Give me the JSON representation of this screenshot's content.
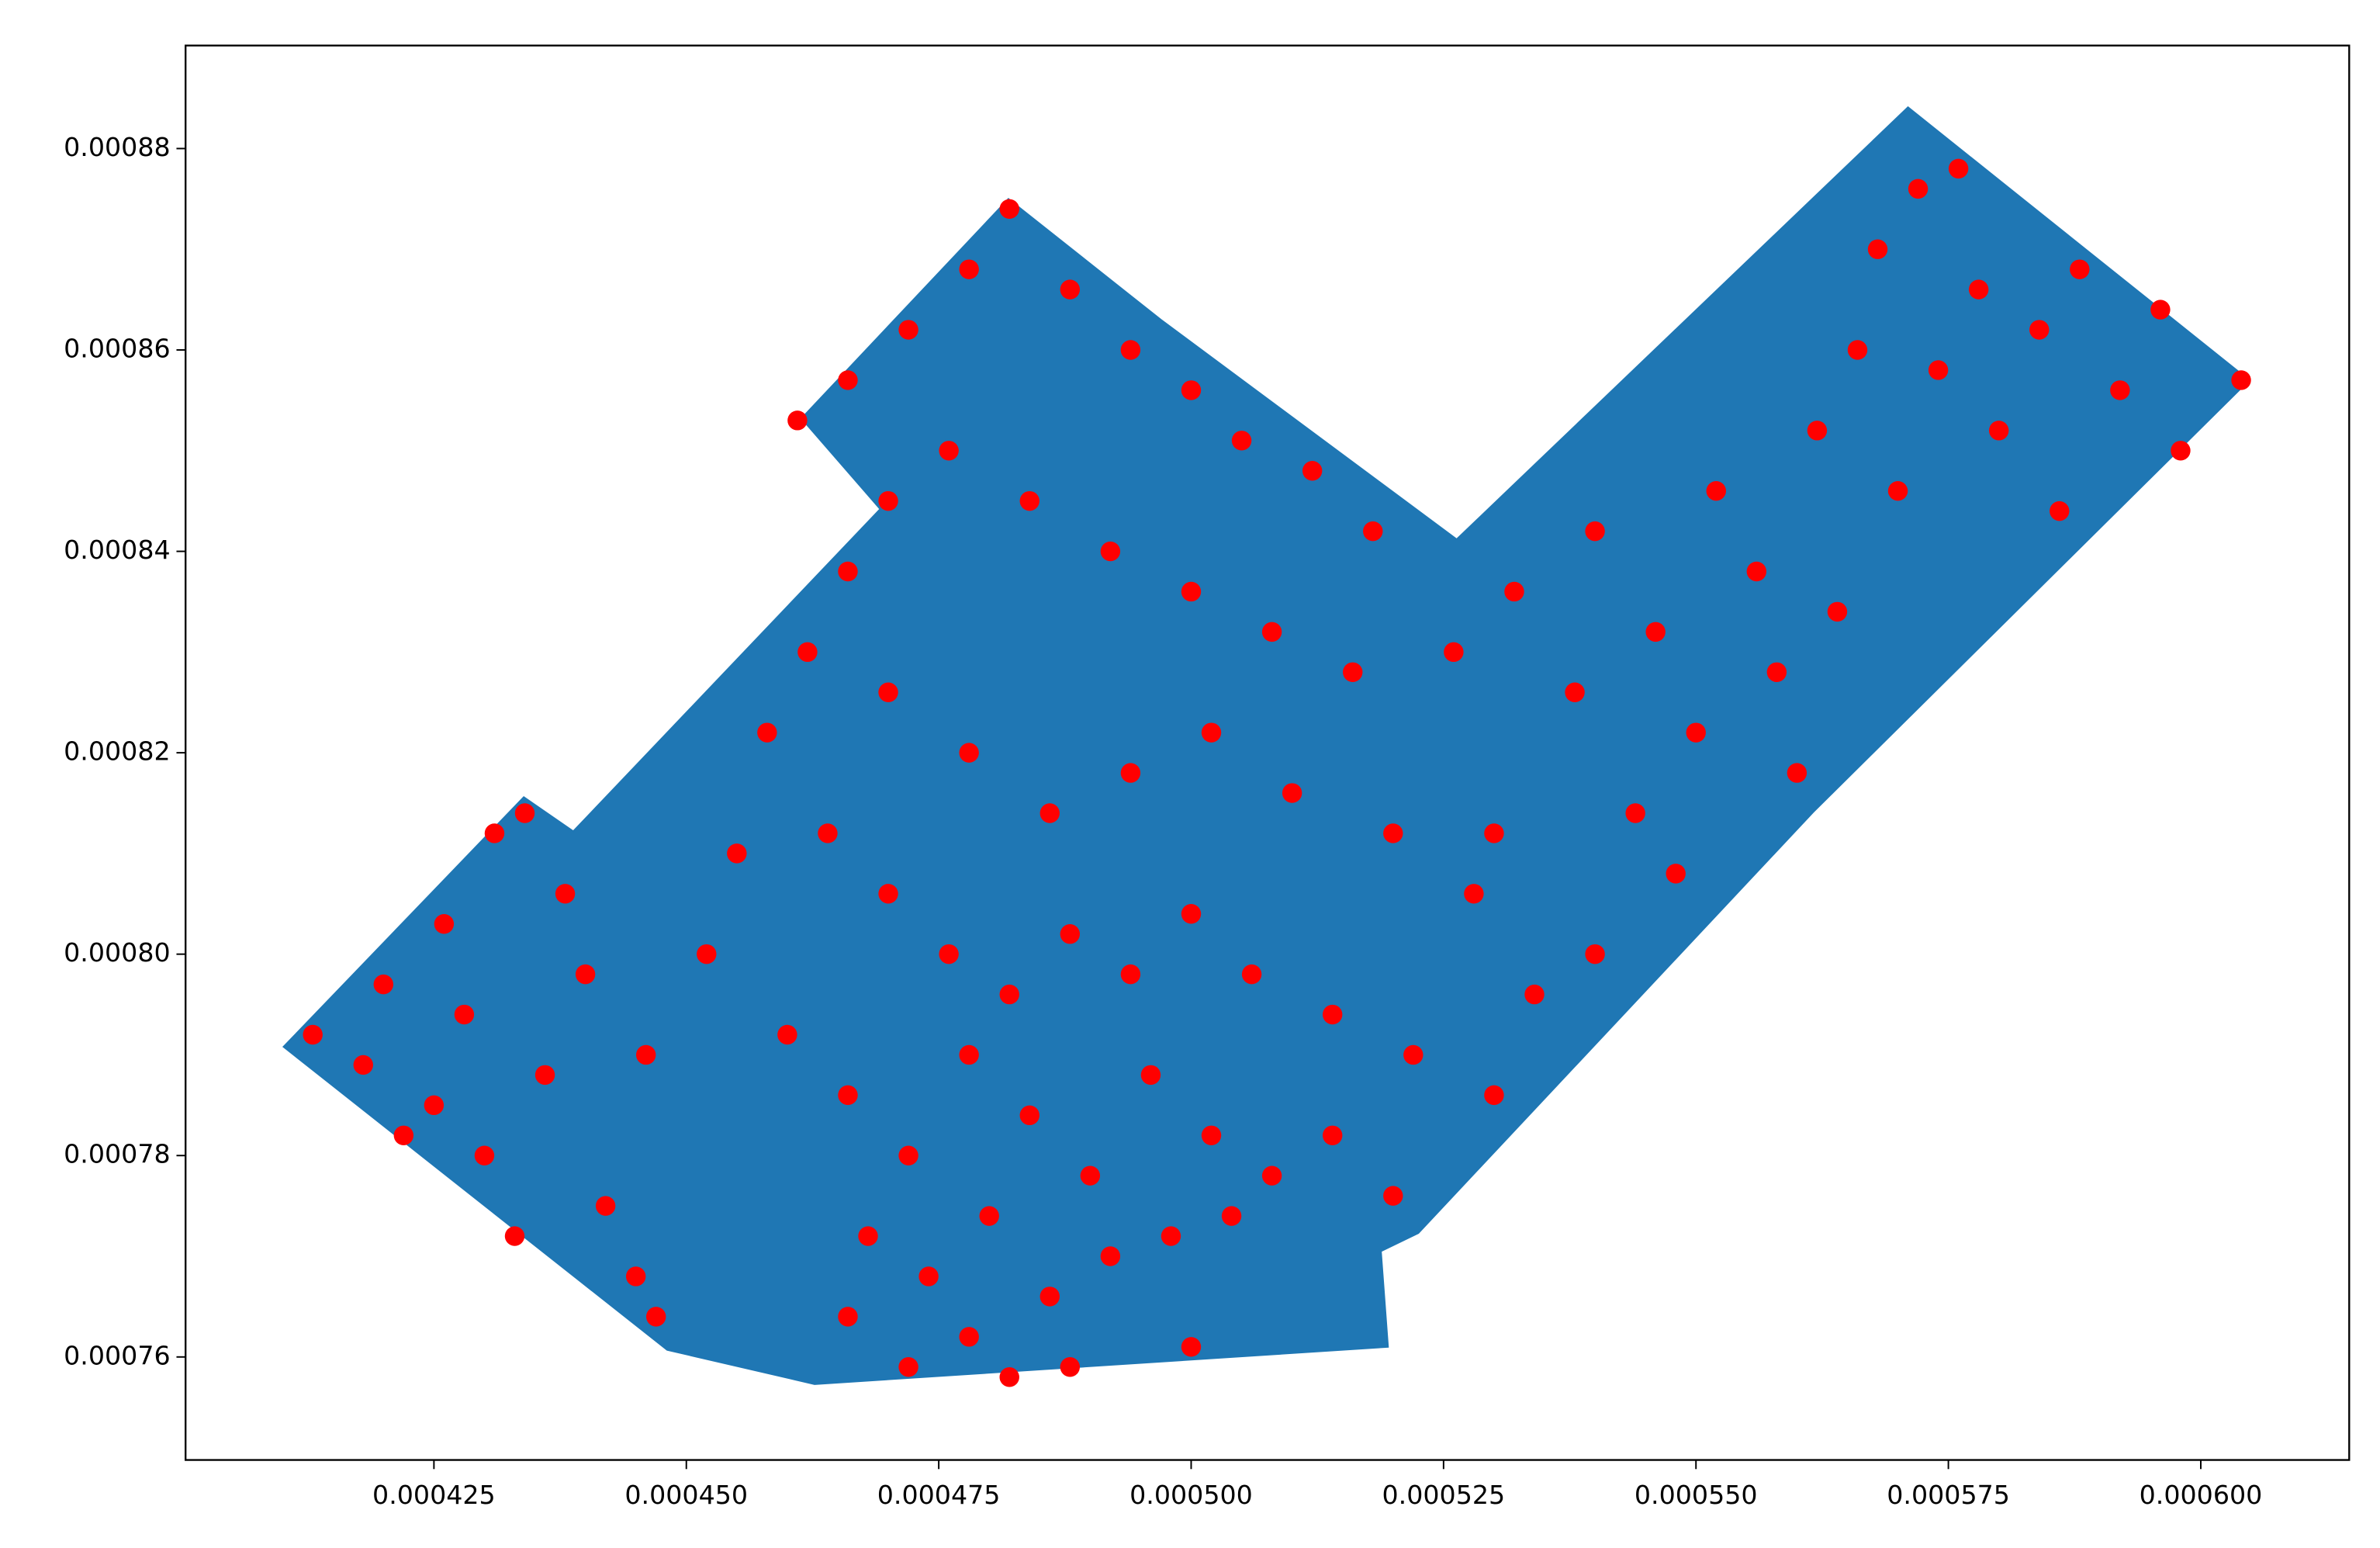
{
  "chart_data": {
    "type": "scatter",
    "xlim": [
      0.0004004,
      0.0006147
    ],
    "ylim": [
      0.00074977,
      0.00089023
    ],
    "xticks": [
      0.000425,
      {
        "value": 0.00045,
        "label": "0.000450"
      },
      0.000475,
      {
        "value": 0.0005,
        "label": "0.000500"
      },
      0.000525,
      {
        "value": 0.00055,
        "label": "0.000550"
      },
      0.000575,
      {
        "value": 0.0006,
        "label": "0.000600"
      }
    ],
    "yticks": [
      0.00076,
      0.00078,
      {
        "value": 0.0008,
        "label": "0.00080"
      },
      0.00082,
      0.00084,
      0.00086,
      0.00088
    ],
    "polygon": {
      "color": "#1f77b4",
      "x": [
        0.0004101,
        0.0004339,
        0.0004388,
        0.0004692,
        0.0004614,
        0.0004819,
        0.000497,
        0.0005263,
        0.000571,
        0.0006048,
        0.0005616,
        0.0005225,
        0.0005188,
        0.0005195,
        0.0004627,
        0.0004481
      ],
      "y": [
        0.0007908,
        0.0008156,
        0.0008122,
        0.0008442,
        0.0008532,
        0.000875,
        0.000863,
        0.0008412,
        0.0008841,
        0.000857,
        0.0008141,
        0.0007723,
        0.0007705,
        0.000761,
        0.0007573,
        0.0007607
      ]
    },
    "color": "#ff0000",
    "x": [
      0.000413,
      0.000418,
      0.00042,
      0.000425,
      0.000428,
      0.000431,
      0.000434,
      0.00043,
      0.000436,
      0.00044,
      0.000442,
      0.000445,
      0.000447,
      0.000438,
      0.000426,
      0.000422,
      0.000433,
      0.000446,
      0.000452,
      0.000455,
      0.000458,
      0.000462,
      0.000466,
      0.00047,
      0.000461,
      0.000466,
      0.000472,
      0.000478,
      0.000482,
      0.000488,
      0.000494,
      0.0005,
      0.000505,
      0.000512,
      0.000518,
      0.000476,
      0.000484,
      0.000492,
      0.0005,
      0.000508,
      0.000516,
      0.00047,
      0.000478,
      0.000486,
      0.000494,
      0.000502,
      0.00051,
      0.00052,
      0.000528,
      0.000464,
      0.00047,
      0.000476,
      0.000482,
      0.000488,
      0.000494,
      0.0005,
      0.000506,
      0.000514,
      0.000522,
      0.00053,
      0.00046,
      0.000466,
      0.000472,
      0.000478,
      0.000484,
      0.00049,
      0.000496,
      0.000502,
      0.000508,
      0.000514,
      0.00052,
      0.000468,
      0.000474,
      0.00048,
      0.000486,
      0.000492,
      0.000498,
      0.000504,
      0.000466,
      0.000472,
      0.000478,
      0.000482,
      0.000488,
      0.0005,
      0.000526,
      0.000532,
      0.000538,
      0.00054,
      0.000546,
      0.000544,
      0.00055,
      0.000552,
      0.000556,
      0.000558,
      0.000562,
      0.000564,
      0.000566,
      0.000568,
      0.00057,
      0.000572,
      0.000574,
      0.000576,
      0.000578,
      0.00058,
      0.000584,
      0.000586,
      0.000588,
      0.000592,
      0.000596,
      0.000598,
      0.000604,
      0.00056,
      0.000548,
      0.00054,
      0.000534,
      0.00053
    ],
    "y": [
      0.000792,
      0.000789,
      0.000797,
      0.000785,
      0.000794,
      0.000812,
      0.000814,
      0.00078,
      0.000788,
      0.000798,
      0.000775,
      0.000768,
      0.000764,
      0.000806,
      0.000803,
      0.000782,
      0.000772,
      0.00079,
      0.0008,
      0.00081,
      0.000822,
      0.00083,
      0.000838,
      0.000845,
      0.000853,
      0.000857,
      0.000862,
      0.000868,
      0.000874,
      0.000866,
      0.00086,
      0.000856,
      0.000851,
      0.000848,
      0.000842,
      0.00085,
      0.000845,
      0.00084,
      0.000836,
      0.000832,
      0.000828,
      0.000826,
      0.00082,
      0.000814,
      0.000818,
      0.000822,
      0.000816,
      0.000812,
      0.000806,
      0.000812,
      0.000806,
      0.0008,
      0.000796,
      0.000802,
      0.000798,
      0.000804,
      0.000798,
      0.000794,
      0.00079,
      0.000786,
      0.000792,
      0.000786,
      0.00078,
      0.00079,
      0.000784,
      0.000778,
      0.000788,
      0.000782,
      0.000778,
      0.000782,
      0.000776,
      0.000772,
      0.000768,
      0.000774,
      0.000766,
      0.00077,
      0.000772,
      0.000774,
      0.000764,
      0.000759,
      0.000762,
      0.000758,
      0.000759,
      0.000761,
      0.00083,
      0.000836,
      0.000826,
      0.000842,
      0.000832,
      0.000814,
      0.000822,
      0.000846,
      0.000838,
      0.000828,
      0.000852,
      0.000834,
      0.00086,
      0.00087,
      0.000846,
      0.000876,
      0.000858,
      0.000878,
      0.000866,
      0.000852,
      0.000862,
      0.000844,
      0.000868,
      0.000856,
      0.000864,
      0.00085,
      0.000857,
      0.000818,
      0.000808,
      0.0008,
      0.000796,
      0.000812
    ]
  }
}
